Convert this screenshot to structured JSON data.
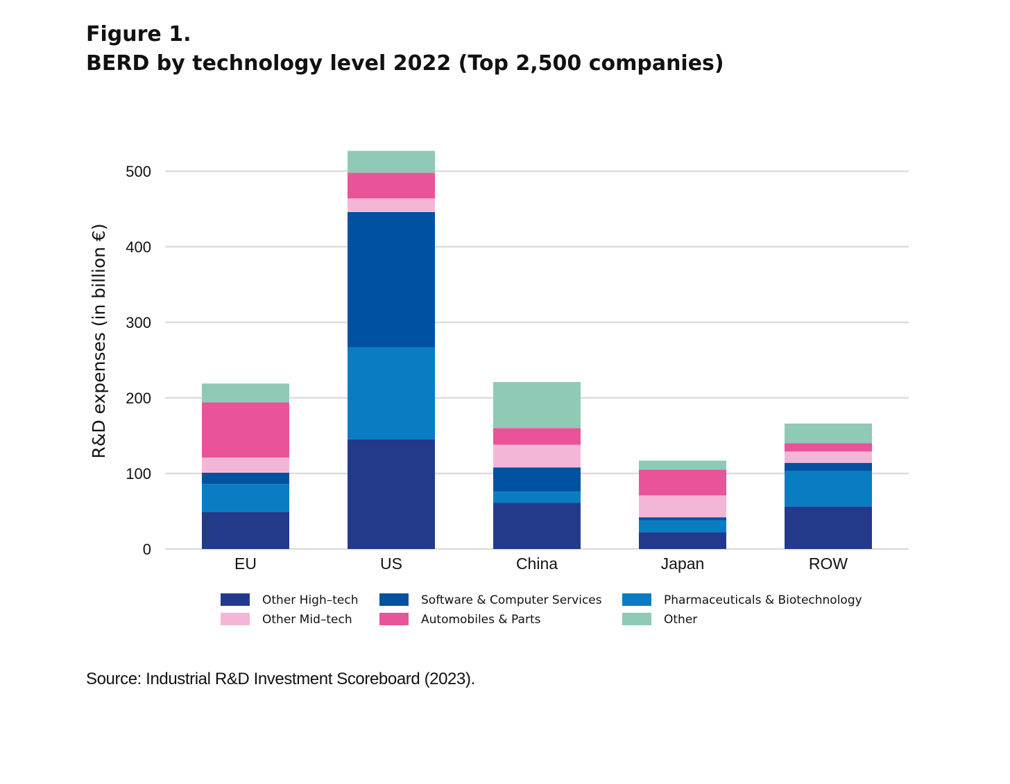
{
  "figure_label": "Figure 1.",
  "source_note": "Source: Industrial R&D Investment Scoreboard (2023).",
  "chart_data": {
    "type": "bar",
    "stacked": true,
    "title": "BERD by technology level 2022 (Top 2,500 companies)",
    "xlabel": "",
    "ylabel": "R&D expenses (in billion €)",
    "ylim": [
      0,
      530
    ],
    "yticks": [
      0,
      100,
      200,
      300,
      400,
      500
    ],
    "grid": true,
    "legend_position": "bottom",
    "categories": [
      "EU",
      "US",
      "China",
      "Japan",
      "ROW"
    ],
    "series": [
      {
        "name": "Other High–tech",
        "color": "#233a8b",
        "values": [
          49,
          145,
          61,
          22,
          56
        ]
      },
      {
        "name": "Pharmaceuticals & Biotechnology",
        "color": "#0a7dc2",
        "values": [
          37,
          122,
          15,
          16,
          47
        ]
      },
      {
        "name": "Software & Computer Services",
        "color": "#00519f",
        "values": [
          15,
          179,
          32,
          4,
          11
        ]
      },
      {
        "name": "Other Mid–tech",
        "color": "#f4b6d6",
        "values": [
          20,
          18,
          30,
          29,
          15
        ]
      },
      {
        "name": "Automobiles & Parts",
        "color": "#e85399",
        "values": [
          73,
          34,
          22,
          34,
          11
        ]
      },
      {
        "name": "Other",
        "color": "#8ecab5",
        "values": [
          25,
          29,
          61,
          12,
          26
        ]
      }
    ],
    "legend_order": [
      "Other High–tech",
      "Software & Computer Services",
      "Pharmaceuticals & Biotechnology",
      "Other Mid–tech",
      "Automobiles & Parts",
      "Other"
    ]
  }
}
